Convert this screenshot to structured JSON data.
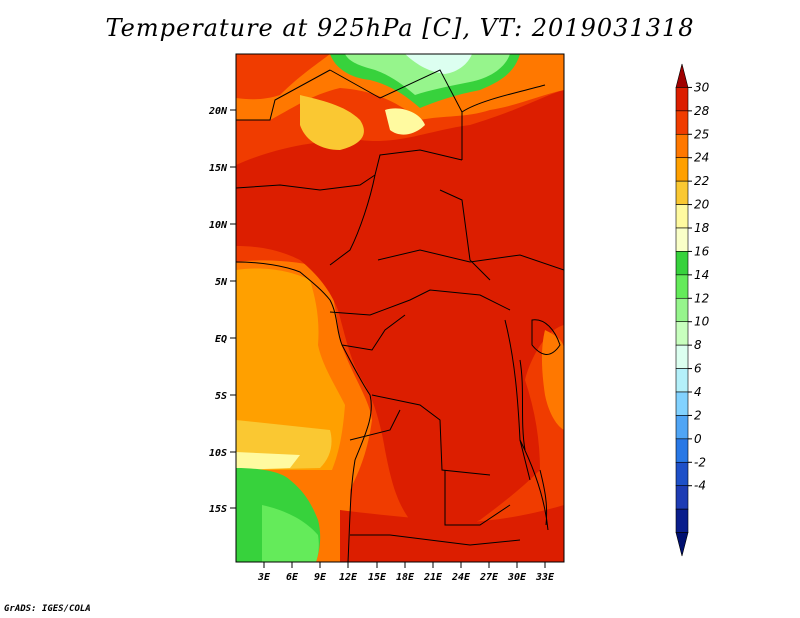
{
  "title": "Temperature at 925hPa [C], VT: 2019031318",
  "credit": "GrADS: IGES/COLA",
  "map": {
    "lat_labels": [
      "20N",
      "15N",
      "10N",
      "5N",
      "EQ",
      "5S",
      "10S",
      "15S"
    ],
    "lon_labels": [
      "3E",
      "6E",
      "9E",
      "12E",
      "15E",
      "18E",
      "21E",
      "24E",
      "27E",
      "30E",
      "33E"
    ]
  },
  "colorbar": {
    "levels": [
      "30",
      "28",
      "25",
      "24",
      "22",
      "20",
      "18",
      "16",
      "14",
      "12",
      "10",
      "8",
      "6",
      "4",
      "2",
      "0",
      "-2",
      "-4"
    ],
    "colors": [
      "#a00000",
      "#dc1e00",
      "#f03c00",
      "#ff7800",
      "#ffa000",
      "#fac832",
      "#fffaa0",
      "#faffc8",
      "#37d23c",
      "#64eb5a",
      "#96f58c",
      "#c8ffbe",
      "#dcfff0",
      "#b4f0fa",
      "#82d2ff",
      "#50a5f5",
      "#2878e6",
      "#1e50c8",
      "#1e3cb4",
      "#0a1e8c",
      "#001070"
    ]
  },
  "palette": {
    "red_dark": "#dc1e00",
    "red_orange": "#f03c00",
    "orange": "#ff7800",
    "orange_light": "#ffa000",
    "yellow_orange": "#fac832",
    "pale_yellow": "#fffaa0",
    "green": "#37d23c",
    "light_green": "#96f58c",
    "pale_cyan": "#dcfff0"
  }
}
